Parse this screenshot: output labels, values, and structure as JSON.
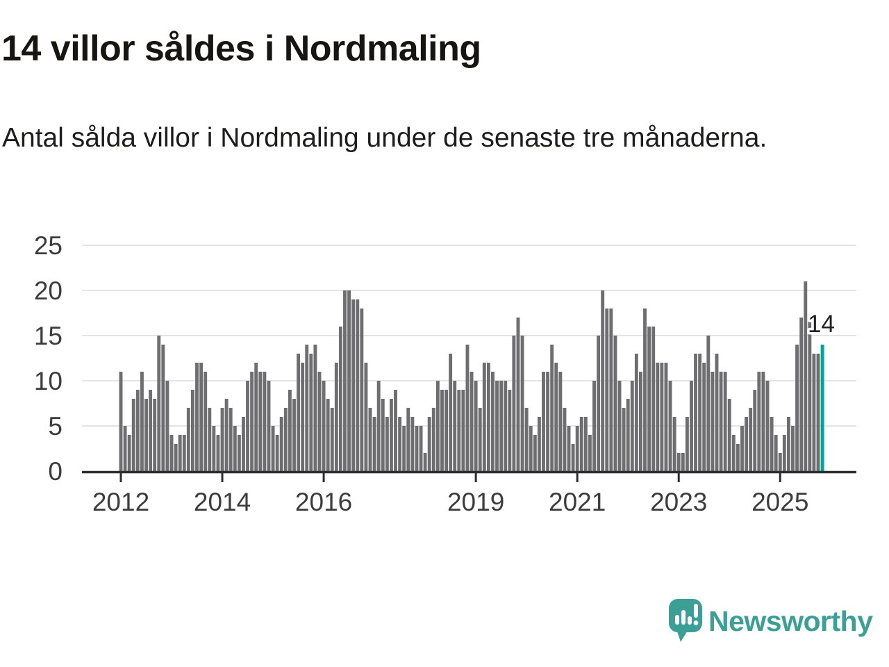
{
  "header": {
    "title": "14 villor såldes i Nordmaling",
    "subtitle": "Antal sålda villor i Nordmaling under de senaste tre månaderna."
  },
  "chart_data": {
    "type": "bar",
    "title": "14 villor såldes i Nordmaling",
    "ylabel": "",
    "xlabel": "",
    "ylim": [
      0,
      25
    ],
    "grid": true,
    "start_month": "2012-01",
    "end_month": "2025-11",
    "y_ticks": [
      0,
      5,
      10,
      15,
      20,
      25
    ],
    "x_ticks": [
      {
        "label": "2012",
        "month_index": 0
      },
      {
        "label": "2014",
        "month_index": 24
      },
      {
        "label": "2016",
        "month_index": 48
      },
      {
        "label": "2019",
        "month_index": 84
      },
      {
        "label": "2021",
        "month_index": 108
      },
      {
        "label": "2023",
        "month_index": 132
      },
      {
        "label": "2025",
        "month_index": 156
      }
    ],
    "series": [
      {
        "name": "Antal sålda villor (rullande tre månader)",
        "values": [
          11,
          5,
          4,
          8,
          9,
          11,
          8,
          9,
          8,
          15,
          14,
          10,
          4,
          3,
          4,
          4,
          7,
          9,
          12,
          12,
          11,
          7,
          5,
          4,
          7,
          8,
          7,
          5,
          4,
          6,
          10,
          11,
          12,
          11,
          11,
          10,
          5,
          4,
          6,
          7,
          9,
          8,
          13,
          12,
          14,
          13,
          14,
          11,
          10,
          8,
          7,
          12,
          16,
          20,
          20,
          19,
          19,
          18,
          12,
          7,
          6,
          10,
          8,
          6,
          8,
          9,
          6,
          5,
          7,
          6,
          5,
          5,
          2,
          6,
          7,
          10,
          9,
          9,
          13,
          10,
          9,
          9,
          14,
          11,
          10,
          7,
          12,
          12,
          11,
          10,
          10,
          10,
          9,
          15,
          17,
          15,
          7,
          5,
          4,
          6,
          11,
          11,
          14,
          12,
          11,
          7,
          5,
          3,
          5,
          6,
          6,
          4,
          10,
          15,
          20,
          18,
          18,
          15,
          10,
          7,
          8,
          10,
          13,
          11,
          18,
          16,
          16,
          12,
          12,
          12,
          10,
          6,
          2,
          2,
          6,
          10,
          13,
          13,
          12,
          15,
          11,
          13,
          11,
          11,
          8,
          4,
          3,
          5,
          6,
          7,
          9,
          11,
          11,
          10,
          6,
          4,
          2,
          4,
          6,
          5,
          14,
          17,
          21,
          17,
          13,
          13,
          14
        ]
      }
    ],
    "highlight": {
      "index": 166,
      "value": 14,
      "label": "14"
    },
    "colors": {
      "bar": "#6e6e71",
      "accent": "#00a49b",
      "grid": "#e4e4e4",
      "axis": "#2d2d2d",
      "tick_text": "#3c3c3c",
      "annotation_text": "#222222"
    }
  },
  "footer": {
    "brand": "Newsworthy",
    "logo_color": "#3b9f96"
  }
}
